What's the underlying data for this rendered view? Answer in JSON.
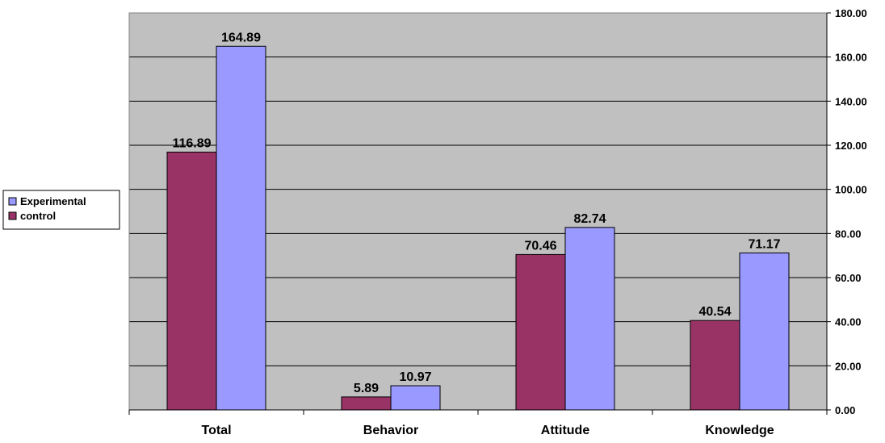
{
  "chart_data": {
    "type": "bar",
    "categories": [
      "Total",
      "Behavior",
      "Attitude",
      "Knowledge"
    ],
    "series": [
      {
        "name": "control",
        "values": [
          116.89,
          5.89,
          70.46,
          40.54
        ],
        "color": "#993366"
      },
      {
        "name": "Experimental",
        "values": [
          164.89,
          10.97,
          82.74,
          71.17
        ],
        "color": "#9999FF"
      }
    ],
    "legend_order": [
      "Experimental",
      "control"
    ],
    "legend_position": "left",
    "ylim": [
      0,
      180
    ],
    "ytick_step": 20,
    "y_axis_side": "right",
    "ytick_decimals": 2,
    "grid": true,
    "plot_background": "#C0C0C0",
    "title": "",
    "xlabel": "",
    "ylabel": ""
  }
}
